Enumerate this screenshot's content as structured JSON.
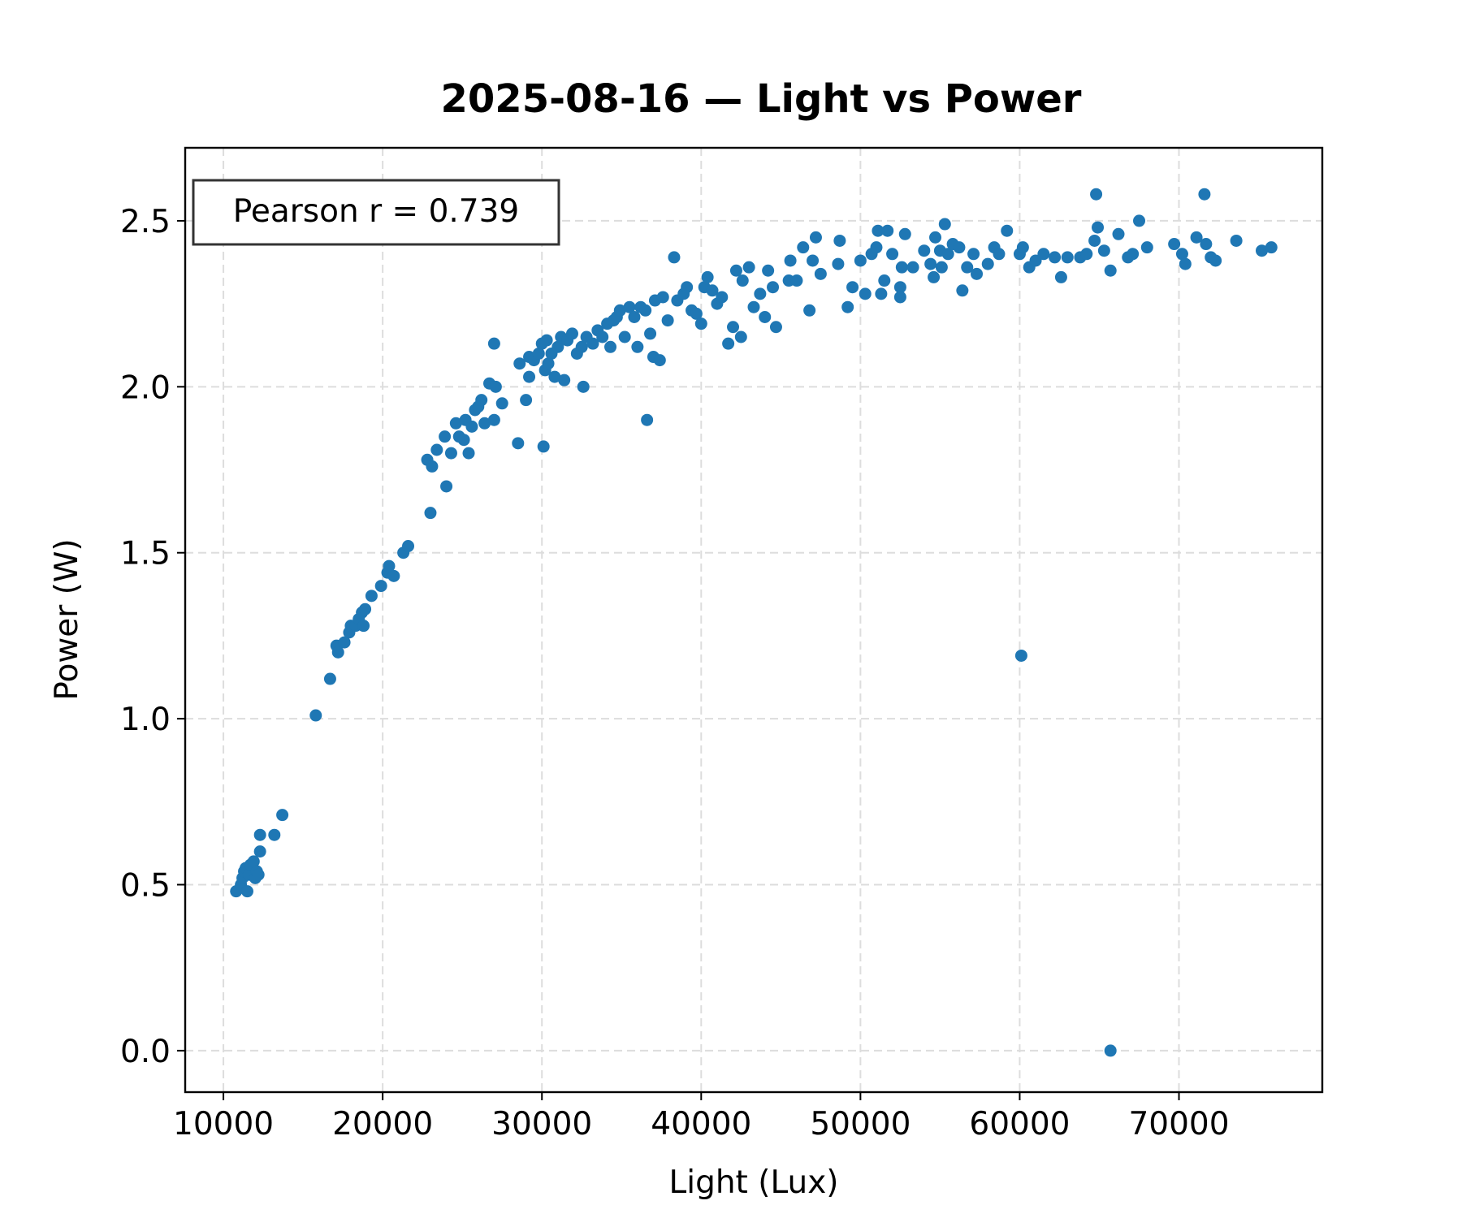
{
  "chart_data": {
    "type": "scatter",
    "title": "2025-08-16 — Light vs Power",
    "xlabel": "Light (Lux)",
    "ylabel": "Power (W)",
    "xlim": [
      7600,
      79000
    ],
    "ylim": [
      -0.125,
      2.72
    ],
    "xticks": [
      10000,
      20000,
      30000,
      40000,
      50000,
      60000,
      70000
    ],
    "xtick_labels": [
      "10000",
      "20000",
      "30000",
      "40000",
      "50000",
      "60000",
      "70000"
    ],
    "yticks": [
      0.0,
      0.5,
      1.0,
      1.5,
      2.0,
      2.5
    ],
    "ytick_labels": [
      "0.0",
      "0.5",
      "1.0",
      "1.5",
      "2.0",
      "2.5"
    ],
    "grid": true,
    "annotation": "Pearson r = 0.739",
    "annotation_placement": "top-left",
    "point_color": "#1f77b4",
    "points": [
      [
        10800,
        0.48
      ],
      [
        11100,
        0.5
      ],
      [
        11200,
        0.52
      ],
      [
        11300,
        0.54
      ],
      [
        11400,
        0.55
      ],
      [
        11500,
        0.48
      ],
      [
        11600,
        0.53
      ],
      [
        11700,
        0.56
      ],
      [
        11900,
        0.57
      ],
      [
        12000,
        0.52
      ],
      [
        12100,
        0.54
      ],
      [
        12200,
        0.53
      ],
      [
        12300,
        0.65
      ],
      [
        12300,
        0.6
      ],
      [
        13200,
        0.65
      ],
      [
        13700,
        0.71
      ],
      [
        15800,
        1.01
      ],
      [
        16700,
        1.12
      ],
      [
        17100,
        1.22
      ],
      [
        17200,
        1.2
      ],
      [
        17600,
        1.23
      ],
      [
        17900,
        1.26
      ],
      [
        18000,
        1.28
      ],
      [
        18300,
        1.28
      ],
      [
        18500,
        1.3
      ],
      [
        18700,
        1.32
      ],
      [
        18800,
        1.28
      ],
      [
        18900,
        1.33
      ],
      [
        19300,
        1.37
      ],
      [
        19900,
        1.4
      ],
      [
        20300,
        1.44
      ],
      [
        20400,
        1.46
      ],
      [
        20700,
        1.43
      ],
      [
        21300,
        1.5
      ],
      [
        21600,
        1.52
      ],
      [
        22800,
        1.78
      ],
      [
        23000,
        1.62
      ],
      [
        23100,
        1.76
      ],
      [
        23400,
        1.81
      ],
      [
        23900,
        1.85
      ],
      [
        24000,
        1.7
      ],
      [
        24300,
        1.8
      ],
      [
        24600,
        1.89
      ],
      [
        24800,
        1.85
      ],
      [
        25100,
        1.84
      ],
      [
        25200,
        1.9
      ],
      [
        25400,
        1.8
      ],
      [
        25600,
        1.88
      ],
      [
        25800,
        1.93
      ],
      [
        26000,
        1.94
      ],
      [
        26200,
        1.96
      ],
      [
        26400,
        1.89
      ],
      [
        26700,
        2.01
      ],
      [
        27000,
        1.9
      ],
      [
        27000,
        2.13
      ],
      [
        27100,
        2.0
      ],
      [
        27500,
        1.95
      ],
      [
        28500,
        1.83
      ],
      [
        28600,
        2.07
      ],
      [
        29000,
        1.96
      ],
      [
        29200,
        2.03
      ],
      [
        29200,
        2.09
      ],
      [
        29500,
        2.08
      ],
      [
        29800,
        2.1
      ],
      [
        30000,
        2.13
      ],
      [
        30100,
        1.82
      ],
      [
        30200,
        2.05
      ],
      [
        30300,
        2.14
      ],
      [
        30400,
        2.07
      ],
      [
        30600,
        2.1
      ],
      [
        30800,
        2.03
      ],
      [
        31000,
        2.12
      ],
      [
        31200,
        2.15
      ],
      [
        31400,
        2.02
      ],
      [
        31600,
        2.14
      ],
      [
        31900,
        2.16
      ],
      [
        32200,
        2.1
      ],
      [
        32500,
        2.12
      ],
      [
        32600,
        2.0
      ],
      [
        32800,
        2.15
      ],
      [
        33200,
        2.13
      ],
      [
        33500,
        2.17
      ],
      [
        33800,
        2.15
      ],
      [
        34100,
        2.19
      ],
      [
        34300,
        2.12
      ],
      [
        34500,
        2.2
      ],
      [
        34700,
        2.21
      ],
      [
        34900,
        2.23
      ],
      [
        35200,
        2.15
      ],
      [
        35500,
        2.24
      ],
      [
        35800,
        2.21
      ],
      [
        36000,
        2.12
      ],
      [
        36200,
        2.24
      ],
      [
        36500,
        2.23
      ],
      [
        36600,
        1.9
      ],
      [
        36800,
        2.16
      ],
      [
        37000,
        2.09
      ],
      [
        37100,
        2.26
      ],
      [
        37400,
        2.08
      ],
      [
        37600,
        2.27
      ],
      [
        37900,
        2.2
      ],
      [
        38300,
        2.39
      ],
      [
        38500,
        2.26
      ],
      [
        38900,
        2.28
      ],
      [
        39100,
        2.3
      ],
      [
        39400,
        2.23
      ],
      [
        39700,
        2.22
      ],
      [
        40000,
        2.19
      ],
      [
        40200,
        2.3
      ],
      [
        40400,
        2.33
      ],
      [
        40700,
        2.29
      ],
      [
        41000,
        2.25
      ],
      [
        41300,
        2.27
      ],
      [
        41700,
        2.13
      ],
      [
        42000,
        2.18
      ],
      [
        42200,
        2.35
      ],
      [
        42500,
        2.15
      ],
      [
        42600,
        2.32
      ],
      [
        43000,
        2.36
      ],
      [
        43300,
        2.24
      ],
      [
        43700,
        2.28
      ],
      [
        44000,
        2.21
      ],
      [
        44200,
        2.35
      ],
      [
        44500,
        2.3
      ],
      [
        44700,
        2.18
      ],
      [
        45500,
        2.32
      ],
      [
        45600,
        2.38
      ],
      [
        46000,
        2.32
      ],
      [
        46400,
        2.42
      ],
      [
        46800,
        2.23
      ],
      [
        47000,
        2.38
      ],
      [
        47200,
        2.45
      ],
      [
        47500,
        2.34
      ],
      [
        48600,
        2.37
      ],
      [
        48700,
        2.44
      ],
      [
        49200,
        2.24
      ],
      [
        49500,
        2.3
      ],
      [
        50000,
        2.38
      ],
      [
        50300,
        2.28
      ],
      [
        50700,
        2.4
      ],
      [
        51000,
        2.42
      ],
      [
        51100,
        2.47
      ],
      [
        51300,
        2.28
      ],
      [
        51500,
        2.32
      ],
      [
        51700,
        2.47
      ],
      [
        52000,
        2.4
      ],
      [
        52500,
        2.3
      ],
      [
        52500,
        2.27
      ],
      [
        52600,
        2.36
      ],
      [
        52800,
        2.46
      ],
      [
        53300,
        2.36
      ],
      [
        54000,
        2.41
      ],
      [
        54400,
        2.37
      ],
      [
        54600,
        2.33
      ],
      [
        54700,
        2.45
      ],
      [
        55000,
        2.41
      ],
      [
        55100,
        2.36
      ],
      [
        55300,
        2.49
      ],
      [
        55500,
        2.4
      ],
      [
        55800,
        2.43
      ],
      [
        56200,
        2.42
      ],
      [
        56400,
        2.29
      ],
      [
        56700,
        2.36
      ],
      [
        57100,
        2.4
      ],
      [
        57300,
        2.34
      ],
      [
        58000,
        2.37
      ],
      [
        58400,
        2.42
      ],
      [
        58700,
        2.4
      ],
      [
        59200,
        2.47
      ],
      [
        60000,
        2.4
      ],
      [
        60100,
        1.19
      ],
      [
        60200,
        2.42
      ],
      [
        60600,
        2.36
      ],
      [
        61000,
        2.38
      ],
      [
        61500,
        2.4
      ],
      [
        62200,
        2.39
      ],
      [
        62600,
        2.33
      ],
      [
        63000,
        2.39
      ],
      [
        63800,
        2.39
      ],
      [
        64200,
        2.4
      ],
      [
        64700,
        2.44
      ],
      [
        64800,
        2.58
      ],
      [
        64900,
        2.48
      ],
      [
        65300,
        2.41
      ],
      [
        65700,
        2.35
      ],
      [
        65700,
        0.0
      ],
      [
        66200,
        2.46
      ],
      [
        66800,
        2.39
      ],
      [
        67100,
        2.4
      ],
      [
        67500,
        2.5
      ],
      [
        68000,
        2.42
      ],
      [
        69700,
        2.43
      ],
      [
        70200,
        2.4
      ],
      [
        70400,
        2.37
      ],
      [
        71100,
        2.45
      ],
      [
        71600,
        2.58
      ],
      [
        71700,
        2.43
      ],
      [
        72000,
        2.39
      ],
      [
        72300,
        2.38
      ],
      [
        73600,
        2.44
      ],
      [
        75200,
        2.41
      ],
      [
        75800,
        2.42
      ]
    ]
  }
}
